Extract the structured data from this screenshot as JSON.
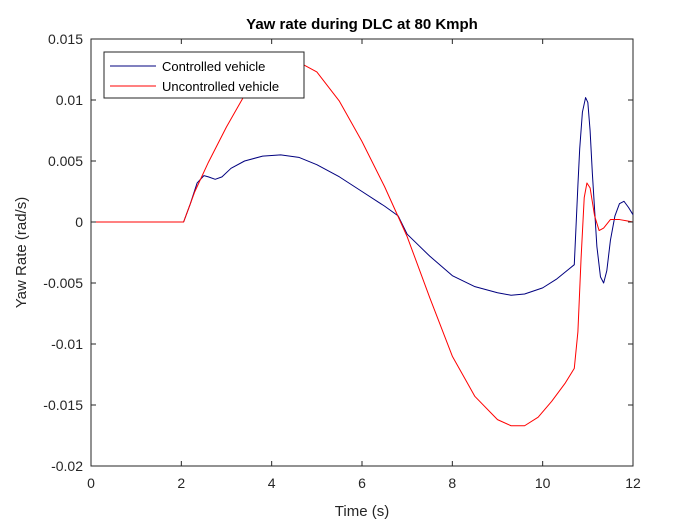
{
  "chart_data": {
    "type": "line",
    "title": "Yaw rate during DLC at 80 Kmph",
    "xlabel": "Time (s)",
    "ylabel": "Yaw Rate (rad/s)",
    "xlim": [
      0,
      12
    ],
    "ylim": [
      -0.02,
      0.015
    ],
    "xticks": [
      0,
      2,
      4,
      6,
      8,
      10,
      12
    ],
    "xtick_labels": [
      "0",
      "2",
      "4",
      "6",
      "8",
      "10",
      "12"
    ],
    "yticks": [
      0.015,
      0.01,
      0.005,
      0,
      -0.005,
      -0.01,
      -0.015,
      -0.02
    ],
    "ytick_labels": [
      "0.015",
      "0.01",
      "0.005",
      "0",
      "-0.005",
      "-0.01",
      "-0.015",
      "-0.02"
    ],
    "grid": false,
    "legend_position": "top-left",
    "series": [
      {
        "name": "Controlled vehicle",
        "color": "#00007f",
        "x": [
          0,
          2.05,
          2.2,
          2.35,
          2.5,
          2.6,
          2.75,
          2.9,
          3.1,
          3.4,
          3.8,
          4.2,
          4.6,
          5.0,
          5.5,
          6.0,
          6.5,
          6.8,
          7.0,
          7.5,
          8.0,
          8.5,
          9.0,
          9.3,
          9.6,
          10.0,
          10.3,
          10.6,
          10.7,
          10.78,
          10.82,
          10.88,
          10.95,
          11.0,
          11.05,
          11.1,
          11.2,
          11.28,
          11.35,
          11.42,
          11.5,
          11.6,
          11.7,
          11.8,
          11.9,
          12.0
        ],
        "y": [
          0,
          0,
          0.0015,
          0.0032,
          0.0038,
          0.0037,
          0.0035,
          0.0037,
          0.0044,
          0.005,
          0.0054,
          0.0055,
          0.0053,
          0.0047,
          0.0037,
          0.0025,
          0.0013,
          0.0005,
          -0.001,
          -0.0028,
          -0.0044,
          -0.0053,
          -0.0058,
          -0.006,
          -0.0059,
          -0.0054,
          -0.0047,
          -0.0038,
          -0.0035,
          0.003,
          0.006,
          0.009,
          0.0102,
          0.0098,
          0.0075,
          0.004,
          -0.002,
          -0.0045,
          -0.005,
          -0.004,
          -0.0015,
          0.0005,
          0.0015,
          0.0017,
          0.0012,
          0.0006
        ]
      },
      {
        "name": "Uncontrolled vehicle",
        "color": "#ff0000",
        "x": [
          0,
          2.05,
          2.3,
          2.6,
          3.0,
          3.4,
          3.8,
          4.2,
          4.6,
          5.0,
          5.5,
          6.0,
          6.5,
          7.0,
          7.5,
          8.0,
          8.5,
          9.0,
          9.3,
          9.6,
          9.9,
          10.2,
          10.5,
          10.7,
          10.78,
          10.85,
          10.92,
          10.98,
          11.05,
          11.15,
          11.25,
          11.35,
          11.5,
          11.7,
          11.85,
          12.0
        ],
        "y": [
          0,
          0,
          0.0025,
          0.0049,
          0.0078,
          0.0104,
          0.0121,
          0.013,
          0.0131,
          0.0123,
          0.0099,
          0.0066,
          0.0029,
          -0.0012,
          -0.0062,
          -0.011,
          -0.0143,
          -0.0162,
          -0.0167,
          -0.0167,
          -0.016,
          -0.0147,
          -0.0132,
          -0.012,
          -0.009,
          -0.003,
          0.002,
          0.0032,
          0.0028,
          0.0005,
          -0.0007,
          -0.0005,
          0.0002,
          0.0002,
          0.0001,
          0.0
        ]
      }
    ]
  }
}
